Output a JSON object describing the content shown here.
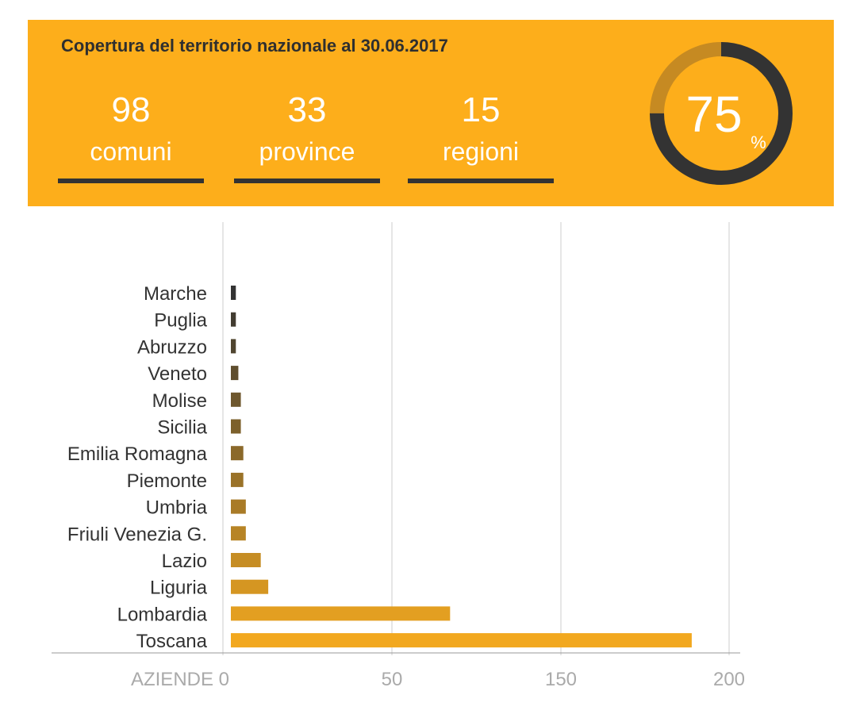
{
  "banner": {
    "title": "Copertura del territorio nazionale al 30.06.2017",
    "stats": [
      {
        "number": "98",
        "label": "comuni"
      },
      {
        "number": "33",
        "label": "province"
      },
      {
        "number": "15",
        "label": "regioni"
      }
    ],
    "coverage_percent": 75,
    "coverage_value": "75",
    "coverage_unit": "%",
    "colors": {
      "background": "#fdae1b",
      "dark": "#333333",
      "remaining": "#c68a22",
      "text": "#ffffff"
    }
  },
  "chart_data": {
    "type": "bar",
    "orientation": "horizontal",
    "title": "",
    "xlabel": "AZIENDE",
    "ylabel": "",
    "categories": [
      "Marche",
      "Puglia",
      "Abruzzo",
      "Veneto",
      "Molise",
      "Sicilia",
      "Emilia Romagna",
      "Piemonte",
      "Umbria",
      "Friuli Venezia G.",
      "Lazio",
      "Liguria",
      "Lombardia",
      "Toscana"
    ],
    "values": [
      2,
      2,
      2,
      3,
      4,
      4,
      5,
      5,
      6,
      6,
      12,
      15,
      88,
      185
    ],
    "x_ticks": [
      {
        "value": 0,
        "label": "AZIENDE 0"
      },
      {
        "value": 50,
        "label": "50"
      },
      {
        "value": 150,
        "label": "150"
      },
      {
        "value": 200,
        "label": "200"
      }
    ],
    "grid": true,
    "bar_color_dark": "#333333",
    "bar_color_light": "#f2a81f"
  }
}
